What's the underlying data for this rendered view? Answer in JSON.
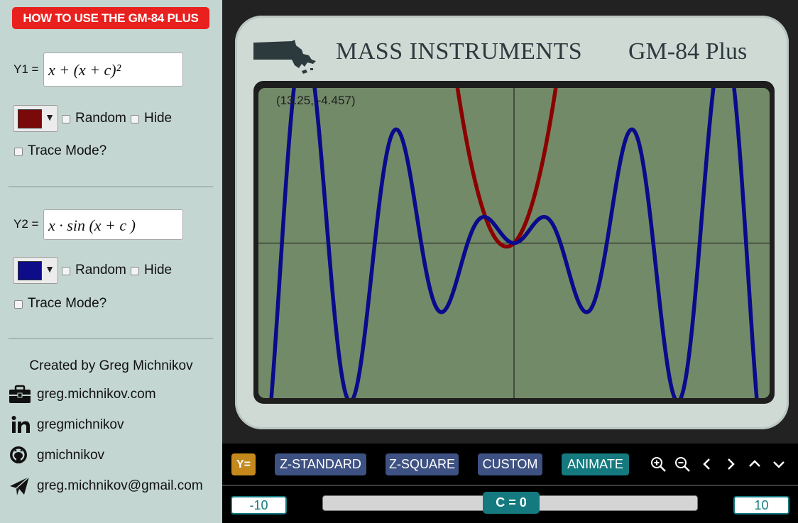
{
  "sidebar": {
    "howto_label": "HOW TO USE THE GM-84 PLUS",
    "y1": {
      "label": "Y1 =",
      "expression": "x + (x + c)²",
      "color": "#7a0a0a",
      "random_label": "Random",
      "hide_label": "Hide",
      "trace_label": "Trace Mode?"
    },
    "y2": {
      "label": "Y2 =",
      "expression": "x · sin (x + c )",
      "color": "#0d0d8a",
      "random_label": "Random",
      "hide_label": "Hide",
      "trace_label": "Trace Mode?"
    },
    "credit": "Created by Greg Michnikov",
    "contacts": [
      {
        "icon": "briefcase-icon",
        "text": "greg.michnikov.com"
      },
      {
        "icon": "linkedin-icon",
        "text": "gregmichnikov"
      },
      {
        "icon": "github-icon",
        "text": "gmichnikov"
      },
      {
        "icon": "paper-plane-icon",
        "text": "greg.michnikov@gmail.com"
      }
    ]
  },
  "calculator": {
    "brand": "MASS INSTRUMENTS",
    "model": "GM-84 Plus",
    "coordinate_readout": "(13.25, -4.457)"
  },
  "toolbar": {
    "y_equals": "Y=",
    "z_standard": "Z-STANDARD",
    "z_square": "Z-SQUARE",
    "custom": "CUSTOM",
    "animate": "ANIMATE",
    "range_min": "-10",
    "range_max": "10",
    "slider_label": "C = 0",
    "slider_value": 0
  },
  "chart_data": {
    "type": "line",
    "xlim": [
      -17.3,
      17.3
    ],
    "ylim": [
      -10.8,
      10.8
    ],
    "series": [
      {
        "name": "Y1",
        "expression": "x + (x + c)^2",
        "color": "#8b0000",
        "c": 0
      },
      {
        "name": "Y2",
        "expression": "x * sin(x + c)",
        "color": "#0a0a8c",
        "c": 0
      }
    ],
    "grid": false
  }
}
